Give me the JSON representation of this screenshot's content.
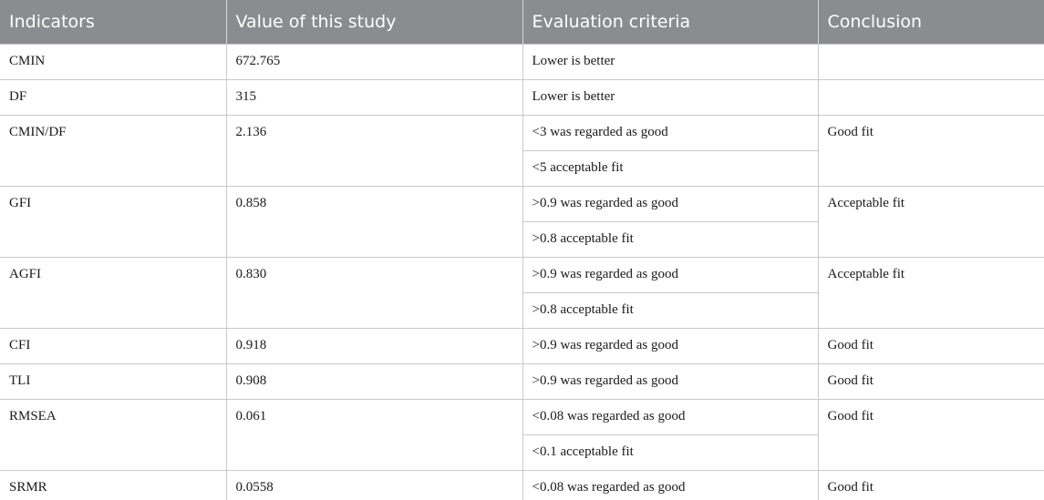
{
  "headers": [
    "Indicators",
    "Value of this study",
    "Evaluation criteria",
    "Conclusion"
  ],
  "rows": [
    {
      "indicator": "CMIN",
      "value": "672.765",
      "criteria": [
        "Lower is better"
      ],
      "conclusion": ""
    },
    {
      "indicator": "DF",
      "value": "315",
      "criteria": [
        "Lower is better"
      ],
      "conclusion": ""
    },
    {
      "indicator": "CMIN/DF",
      "value": "2.136",
      "criteria": [
        "<3 was regarded as good",
        "<5 acceptable fit"
      ],
      "conclusion": "Good fit"
    },
    {
      "indicator": "GFI",
      "value": "0.858",
      "criteria": [
        ">0.9 was regarded as good",
        ">0.8 acceptable fit"
      ],
      "conclusion": "Acceptable fit"
    },
    {
      "indicator": "AGFI",
      "value": "0.830",
      "criteria": [
        ">0.9 was regarded as good",
        ">0.8 acceptable fit"
      ],
      "conclusion": "Acceptable fit"
    },
    {
      "indicator": "CFI",
      "value": "0.918",
      "criteria": [
        ">0.9 was regarded as good"
      ],
      "conclusion": "Good fit"
    },
    {
      "indicator": "TLI",
      "value": "0.908",
      "criteria": [
        ">0.9 was regarded as good"
      ],
      "conclusion": "Good fit"
    },
    {
      "indicator": "RMSEA",
      "value": "0.061",
      "criteria": [
        "<0.08 was regarded as good",
        "<0.1 acceptable fit"
      ],
      "conclusion": "Good fit"
    },
    {
      "indicator": "SRMR",
      "value": "0.0558",
      "criteria": [
        "<0.08 was regarded as good"
      ],
      "conclusion": "Good fit"
    }
  ]
}
